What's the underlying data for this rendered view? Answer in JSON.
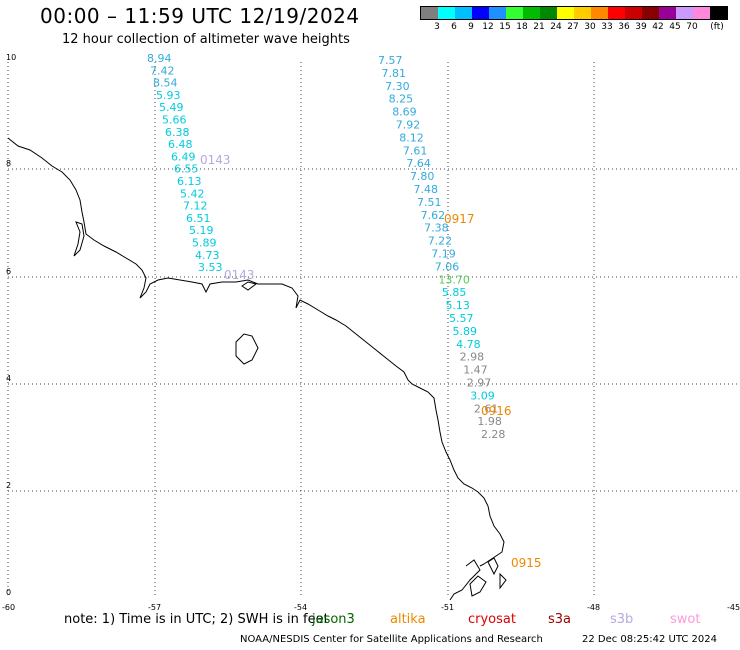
{
  "header": {
    "title": "00:00 – 11:59 UTC 12/19/2024",
    "subtitle": "12 hour collection of altimeter wave heights"
  },
  "legend": {
    "colors": [
      "#7f7f7f",
      "#00ffff",
      "#00bfff",
      "#0000ff",
      "#1e90ff",
      "#33ff33",
      "#00bb00",
      "#008800",
      "#ffff00",
      "#ffcc00",
      "#ff8800",
      "#ff0000",
      "#cc0000",
      "#880000",
      "#990099",
      "#cc99ff",
      "#ff88dd",
      "#000000"
    ],
    "labels": [
      "3",
      "6",
      "9",
      "12",
      "15",
      "18",
      "21",
      "24",
      "27",
      "30",
      "33",
      "36",
      "39",
      "42",
      "45",
      "70"
    ],
    "unit": "(ft)"
  },
  "axes": {
    "y_labels": [
      "10",
      "8",
      "6",
      "4",
      "2",
      "0"
    ],
    "x_labels": [
      "-60",
      "-57",
      "-54",
      "-51",
      "-48",
      "-45"
    ]
  },
  "tracks": [
    {
      "values": [
        "8.94",
        "7.42",
        "8.54",
        "5.93",
        "5.49",
        "5.66",
        "6.38",
        "6.48",
        "6.49",
        "6.55",
        "6.13",
        "5.42",
        "7.12",
        "6.51",
        "5.19",
        "5.89",
        "4.73",
        "3.53"
      ],
      "colors": [
        "#33aadd",
        "#33aadd",
        "#33aadd",
        "#00ccdd",
        "#00ccdd",
        "#00ccdd",
        "#00ccdd",
        "#00ccdd",
        "#00ccdd",
        "#00ccdd",
        "#00ccdd",
        "#00ccdd",
        "#00ccdd",
        "#00ccdd",
        "#00ccdd",
        "#00ccdd",
        "#00ccdd",
        "#00ccdd"
      ],
      "time_labels": [
        "0143",
        "0143"
      ],
      "time_color": "#b8a8e0"
    },
    {
      "values": [
        "7.57",
        "7.81",
        "7.30",
        "8.25",
        "8.69",
        "7.92",
        "8.12",
        "7.61",
        "7.64",
        "7.80",
        "7.48",
        "7.51",
        "7.62",
        "7.38",
        "7.22",
        "7.19",
        "7.06",
        "13.70",
        "5.85",
        "5.13",
        "5.57",
        "5.89",
        "4.78",
        "2.98",
        "1.47",
        "2.97",
        "3.09",
        "2.61",
        "1.98",
        "2.28"
      ],
      "colors": [
        "#33aadd",
        "#33aadd",
        "#33aadd",
        "#33aadd",
        "#33aadd",
        "#33aadd",
        "#33aadd",
        "#33aadd",
        "#33aadd",
        "#33aadd",
        "#33aadd",
        "#33aadd",
        "#33aadd",
        "#33aadd",
        "#33aadd",
        "#33aadd",
        "#33aadd",
        "#55cc55",
        "#00ccdd",
        "#00ccdd",
        "#00ccdd",
        "#00ccdd",
        "#00ccdd",
        "#888888",
        "#888888",
        "#888888",
        "#00ccdd",
        "#888888",
        "#888888",
        "#888888"
      ],
      "time_labels": [
        "0917",
        "0916",
        "0915"
      ],
      "time_color": "#ee8800"
    }
  ],
  "footer": {
    "note": "note:  1) Time is in UTC;  2) SWH is in feet",
    "satellites": [
      {
        "name": "jason3",
        "color": "#006600"
      },
      {
        "name": "altika",
        "color": "#ee8800"
      },
      {
        "name": "cryosat",
        "color": "#dd0000"
      },
      {
        "name": "s3a",
        "color": "#990000"
      },
      {
        "name": "s3b",
        "color": "#b8a8e0"
      },
      {
        "name": "swot",
        "color": "#ff99dd"
      }
    ],
    "credit": "NOAA/NESDIS Center for Satellite Applications and Research",
    "timestamp": "22 Dec 08:25:42 UTC 2024"
  }
}
